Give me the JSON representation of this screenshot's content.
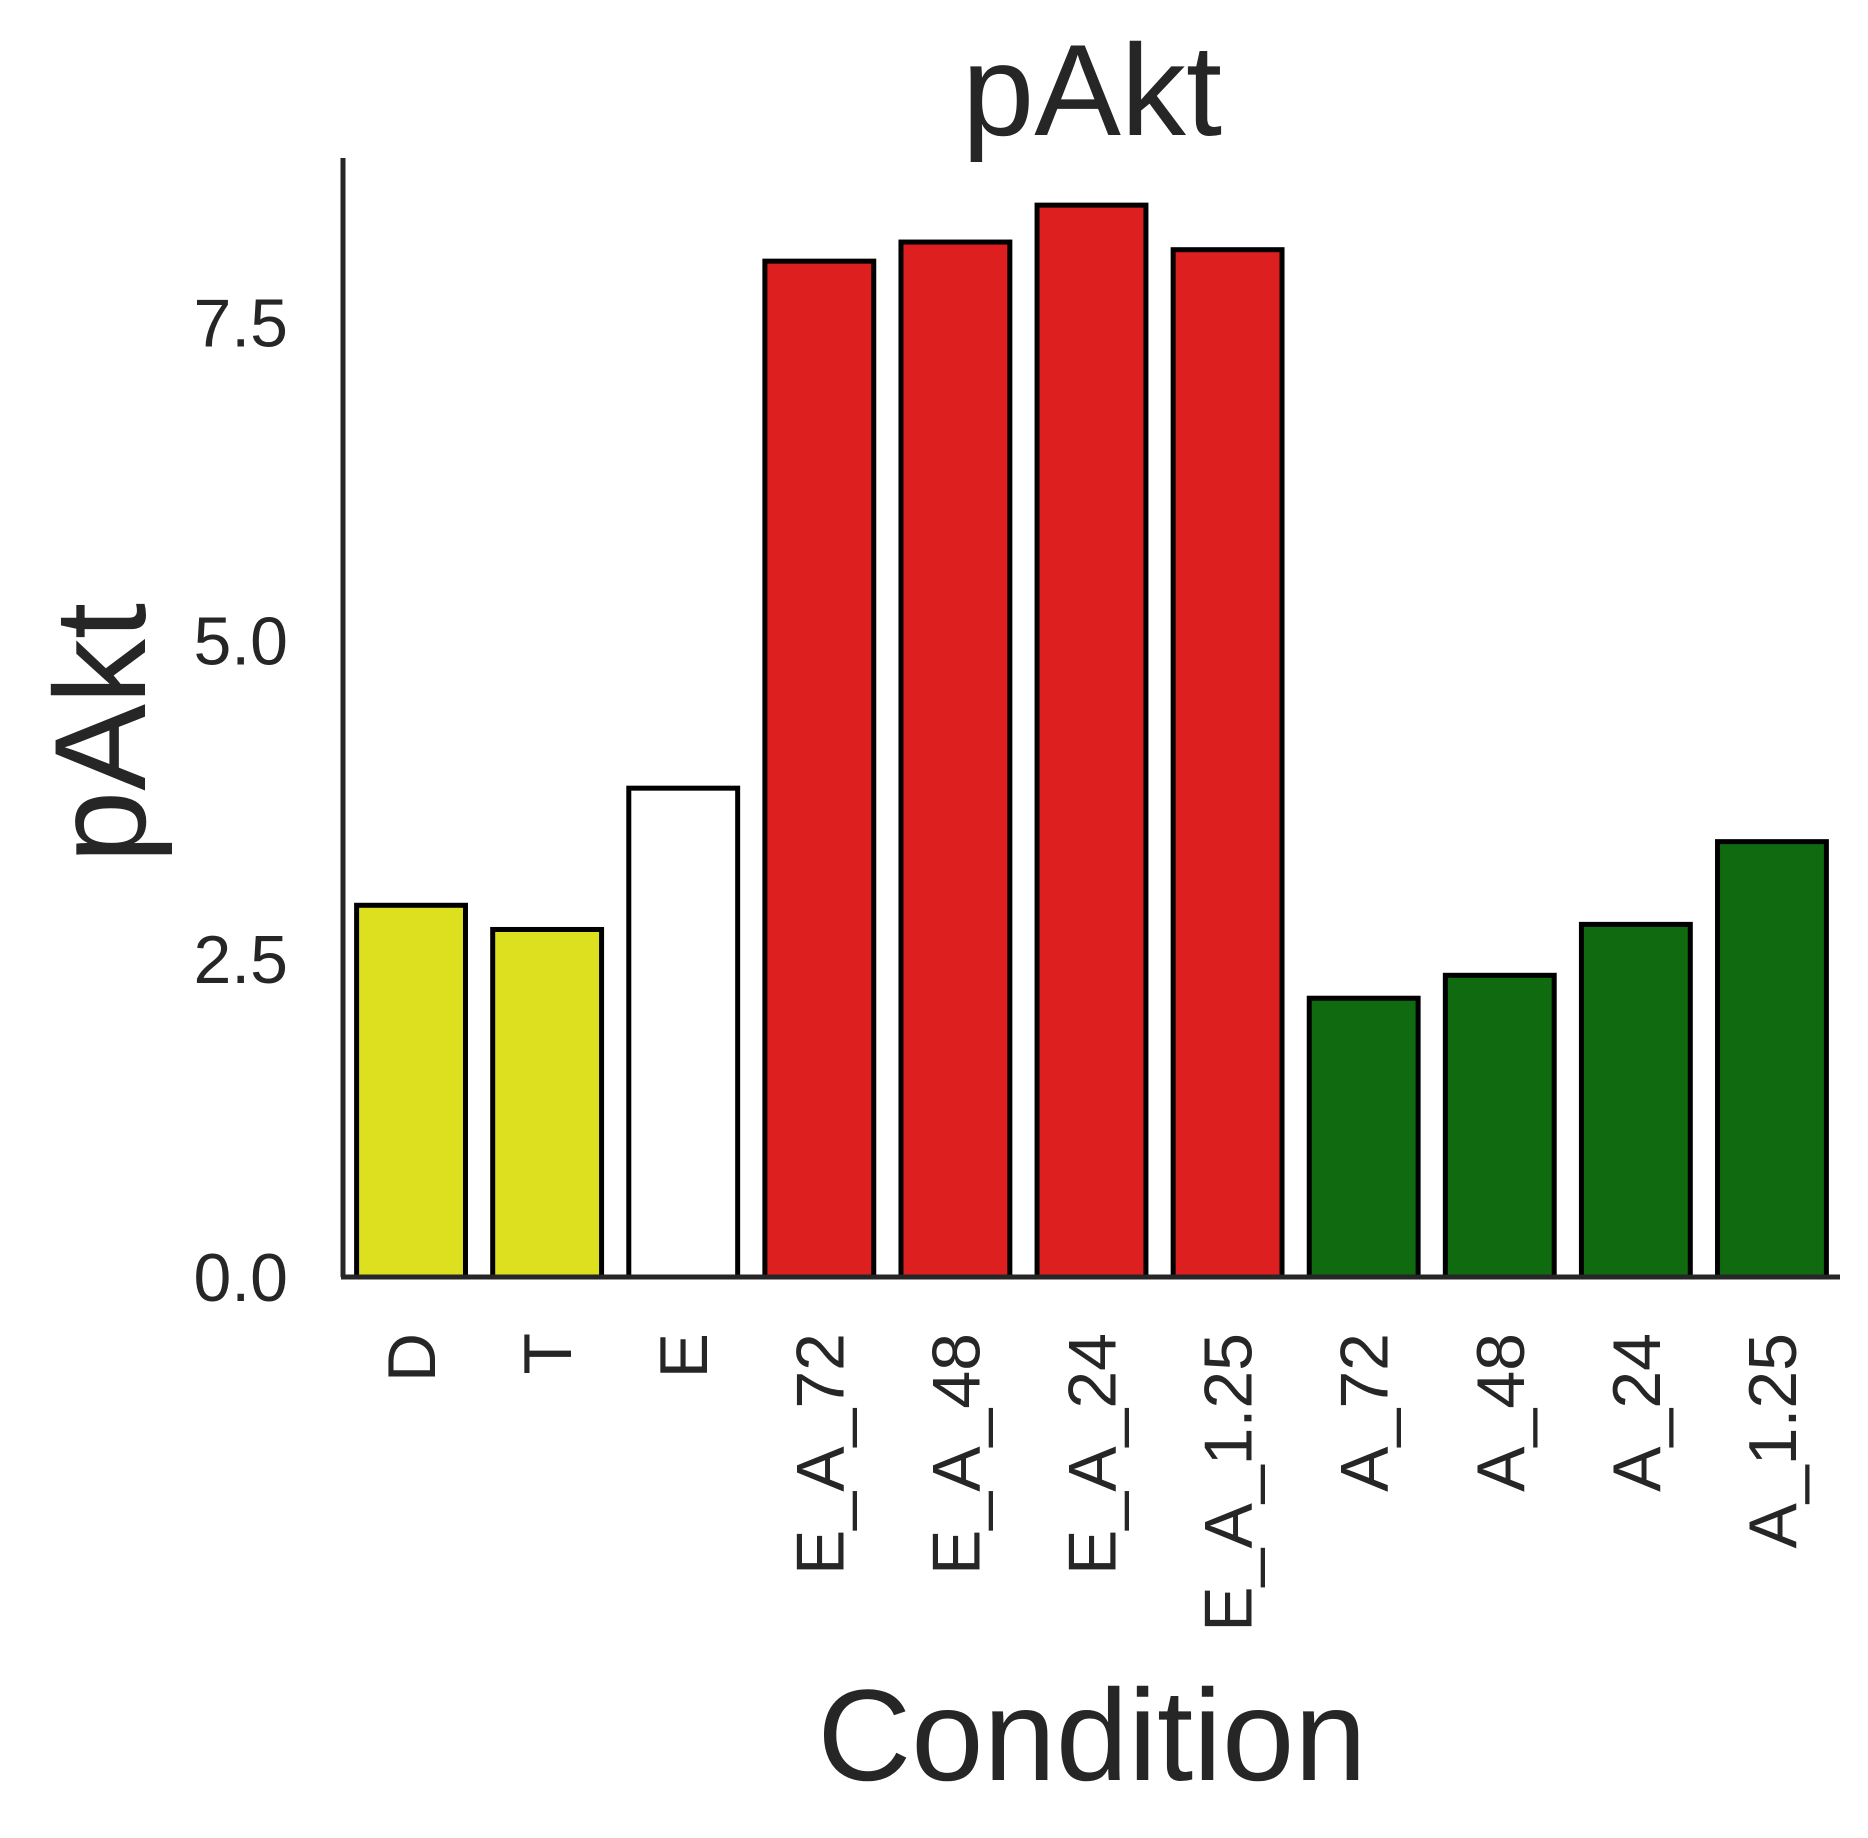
{
  "chart_data": {
    "type": "bar",
    "title": "pAkt",
    "xlabel": "Condition",
    "ylabel": "pAkt",
    "categories": [
      "D",
      "T",
      "E",
      "E_A_72",
      "E_A_48",
      "E_A_24",
      "E_A_1.25",
      "A_72",
      "A_48",
      "A_24",
      "A_1.25"
    ],
    "values": [
      2.92,
      2.73,
      3.84,
      7.98,
      8.13,
      8.42,
      8.07,
      2.19,
      2.37,
      2.77,
      3.42
    ],
    "colors": [
      "#dde01e",
      "#dde01e",
      "#ffffff",
      "#de1f1f",
      "#de1f1f",
      "#de1f1f",
      "#de1f1f",
      "#0f6a10",
      "#0f6a10",
      "#0f6a10",
      "#0f6a10"
    ],
    "yticks": [
      0.0,
      2.5,
      5.0,
      7.5
    ],
    "ytick_labels": [
      "0.0",
      "2.5",
      "5.0",
      "7.5"
    ],
    "ylim": [
      0,
      8.9
    ],
    "grid": false,
    "legend": "none"
  }
}
